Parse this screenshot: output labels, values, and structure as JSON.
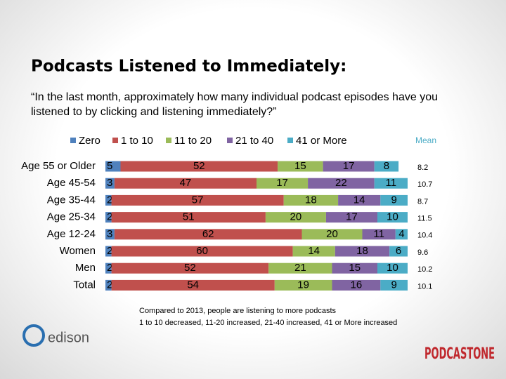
{
  "chart_data": {
    "type": "stacked-bar-horizontal",
    "title": "Podcasts Listened to Immediately:",
    "subtitle": "“In the last month, approximately how many individual podcast episodes have you listened to by clicking and listening immediately?”",
    "categories": [
      "Age 55 or Older",
      "Age 45-54",
      "Age 35-44",
      "Age 25-34",
      "Age 12-24",
      "Women",
      "Men",
      "Total"
    ],
    "series": [
      {
        "name": "Zero",
        "color": "#4f81bd",
        "values": [
          5,
          3,
          2,
          2,
          3,
          2,
          2,
          2
        ]
      },
      {
        "name": "1 to 10",
        "color": "#c0504d",
        "values": [
          52,
          47,
          57,
          51,
          62,
          60,
          52,
          54
        ]
      },
      {
        "name": "11 to 20",
        "color": "#9bbb59",
        "values": [
          15,
          17,
          18,
          20,
          20,
          14,
          21,
          19
        ]
      },
      {
        "name": "21 to 40",
        "color": "#8064a2",
        "values": [
          17,
          22,
          14,
          17,
          11,
          18,
          15,
          16
        ]
      },
      {
        "name": "41 or More",
        "color": "#4bacc6",
        "values": [
          8,
          11,
          9,
          10,
          4,
          6,
          10,
          9
        ]
      }
    ],
    "xlim": [
      0,
      100
    ],
    "mean_label": "Mean",
    "mean": [
      8.2,
      10.7,
      8.7,
      11.5,
      10.4,
      9.6,
      10.2,
      10.1
    ]
  },
  "notes": [
    "Compared to 2013, people are listening to more podcasts",
    "1 to 10 decreased,  11-20 increased, 21-40 increased, 41 or More increased"
  ],
  "logos": {
    "left": "edison",
    "right": "PODCASTONE"
  }
}
